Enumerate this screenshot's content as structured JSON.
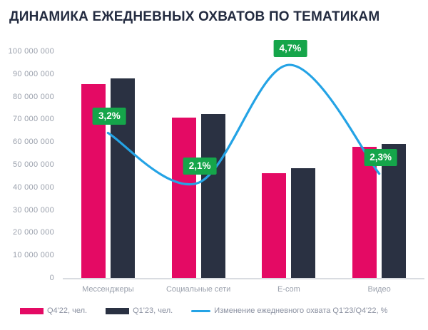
{
  "title": "ДИНАМИКА ЕЖЕДНЕВНЫХ ОХВАТОВ ПО ТЕМАТИКАМ",
  "colors": {
    "q4_bar": "#E40A64",
    "q1_bar": "#2A3142",
    "trend_line": "#24A3E5",
    "badge_bg": "#15A54A",
    "badge_text": "#FFFFFF",
    "title_text": "#232B40",
    "axis_text": "#9AA0AC",
    "baseline": "#D9DCE1",
    "legend_text": "#8A90A0",
    "background": "#FFFFFF"
  },
  "legend": {
    "items": [
      {
        "label": "Q4'22, чел.",
        "swatch": "bar",
        "color_key": "q4_bar"
      },
      {
        "label": "Q1'23, чел.",
        "swatch": "bar",
        "color_key": "q1_bar"
      },
      {
        "label": "Изменение ежедневного охвата Q1'23/Q4'22, %",
        "swatch": "line",
        "color_key": "trend_line"
      }
    ]
  },
  "chart_data": {
    "type": "bar",
    "subtype": "grouped-bars-with-trend-line",
    "title": "ДИНАМИКА ЕЖЕДНЕВНЫХ ОХВАТОВ ПО ТЕМАТИКАМ",
    "categories": [
      "Мессенджеры",
      "Социальные сети",
      "E-com",
      "Видео"
    ],
    "series": [
      {
        "name": "Q4'22, чел.",
        "type": "bar",
        "color": "#E40A64",
        "values": [
          85500000,
          70700000,
          46300000,
          57800000
        ]
      },
      {
        "name": "Q1'23, чел.",
        "type": "bar",
        "color": "#2A3142",
        "values": [
          88200000,
          72200000,
          48500000,
          59100000
        ]
      },
      {
        "name": "Изменение ежедневного охвата Q1'23/Q4'22, %",
        "type": "line",
        "color": "#24A3E5",
        "values": [
          3.2,
          2.1,
          4.7,
          2.3
        ],
        "point_labels": [
          "3,2%",
          "2,1%",
          "4,7%",
          "2,3%"
        ]
      }
    ],
    "y_axis": {
      "min": 0,
      "max": 100000000,
      "step": 10000000,
      "tick_labels": [
        "100 000 000",
        "90 000 000",
        "80 000 000",
        "70 000 000",
        "60 000 000",
        "50 000 000",
        "40 000 000",
        "30 000 000",
        "20 000 000",
        "10 000 000",
        "0"
      ]
    },
    "y2_axis": {
      "min": 0,
      "max": 5,
      "unit": "%",
      "visible": false
    },
    "grid": false,
    "legend_position": "bottom"
  }
}
